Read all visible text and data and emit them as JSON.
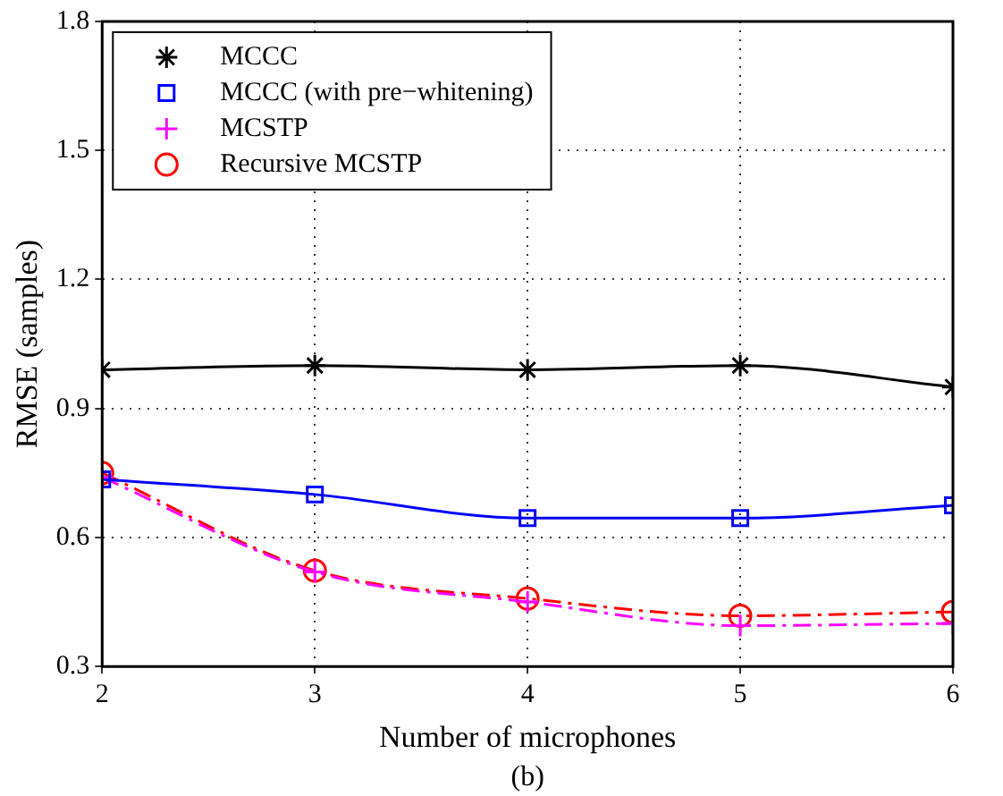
{
  "chart_data": {
    "type": "line",
    "xlabel": "Number of microphones",
    "ylabel": "RMSE (samples)",
    "annotations": [
      "(b)"
    ],
    "x": [
      2,
      3,
      4,
      5,
      6
    ],
    "xlim": [
      2,
      6
    ],
    "xticks": [
      2,
      3,
      4,
      5,
      6
    ],
    "ylim": [
      0.3,
      1.8
    ],
    "yticks": [
      0.3,
      0.6,
      0.9,
      1.2,
      1.5,
      1.8
    ],
    "grid": true,
    "legend": "top left",
    "series": [
      {
        "name": "MCCC",
        "color": "#000000",
        "marker": "cross",
        "line_style": "solid",
        "values": [
          0.99,
          1.0,
          0.99,
          1.0,
          0.95
        ]
      },
      {
        "name": "MCCC (with pre−whitening)",
        "color": "#0000ff",
        "marker": "square",
        "line_style": "solid",
        "values": [
          0.735,
          0.7,
          0.645,
          0.645,
          0.675
        ]
      },
      {
        "name": "MCSTP",
        "color": "#ff00ff",
        "marker": "cross",
        "line_style": "dashed",
        "values": [
          0.74,
          0.52,
          0.45,
          0.395,
          0.4
        ]
      },
      {
        "name": "Recursive MCSTP",
        "color": "#ff0000",
        "marker": "circle",
        "line_style": "dashed",
        "values": [
          0.75,
          0.523,
          0.458,
          0.418,
          0.427
        ]
      }
    ]
  }
}
